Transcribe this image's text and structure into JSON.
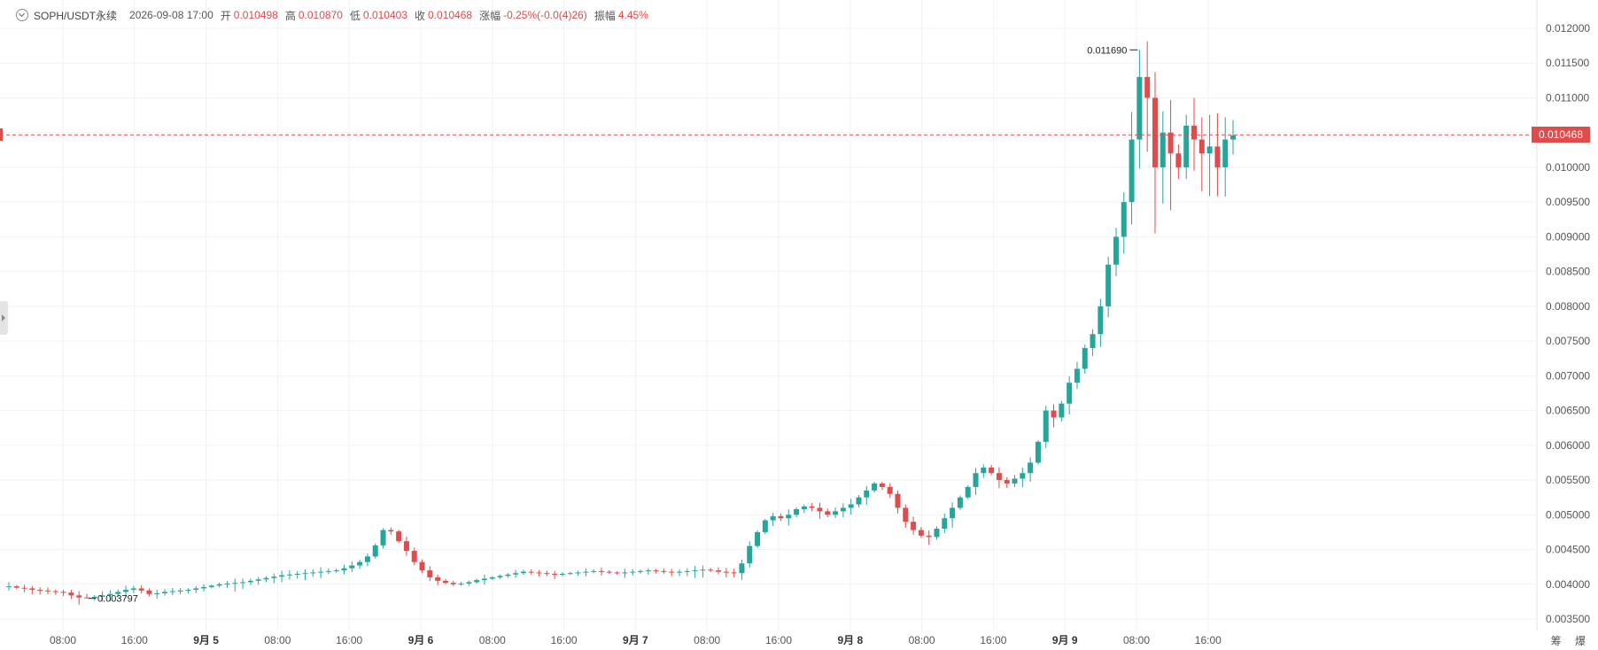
{
  "legend": {
    "symbol": "SOPH/USDT永续",
    "timestamp": "2026-09-08 17:00",
    "open_label": "开",
    "open": "0.010498",
    "high_label": "高",
    "high": "0.010870",
    "low_label": "低",
    "low": "0.010403",
    "close_label": "收",
    "close": "0.010468",
    "change_label": "涨幅",
    "change": "-0.25%(-0.0(4)26)",
    "amplitude_label": "振幅",
    "amplitude": "4.45%"
  },
  "current_price": "0.010468",
  "corner_label": "筹 爆",
  "colors": {
    "up": "#26a69a",
    "down": "#e04b4b",
    "price_line": "#e04b4b",
    "grid": "#f2f2f2",
    "axis_text": "#555555"
  },
  "chart_data": {
    "type": "candlestick",
    "interval": "1h",
    "ylim": [
      0.0034,
      0.0122
    ],
    "y_ticks": [
      "0.012000",
      "0.011500",
      "0.011000",
      "0.010500",
      "0.010000",
      "0.009500",
      "0.009000",
      "0.008500",
      "0.008000",
      "0.007500",
      "0.007000",
      "0.006500",
      "0.006000",
      "0.005500",
      "0.005000",
      "0.004500",
      "0.004000",
      "0.003500"
    ],
    "x_ticks": [
      {
        "label": "08:00",
        "h": 8
      },
      {
        "label": "16:00",
        "h": 16
      },
      {
        "label": "9月 5",
        "h": 24
      },
      {
        "label": "08:00",
        "h": 32
      },
      {
        "label": "16:00",
        "h": 40
      },
      {
        "label": "9月 6",
        "h": 48
      },
      {
        "label": "08:00",
        "h": 56
      },
      {
        "label": "16:00",
        "h": 64
      },
      {
        "label": "9月 7",
        "h": 72
      },
      {
        "label": "08:00",
        "h": 80
      },
      {
        "label": "16:00",
        "h": 88
      },
      {
        "label": "9月 8",
        "h": 96
      },
      {
        "label": "08:00",
        "h": 104
      },
      {
        "label": "16:00",
        "h": 112
      },
      {
        "label": "9月 9",
        "h": 120
      },
      {
        "label": "08:00",
        "h": 128
      },
      {
        "label": "16:00",
        "h": 136
      }
    ],
    "annotations": {
      "max": "0.011690",
      "min": "0.003797"
    },
    "closes": [
      0.00397,
      0.00395,
      0.00394,
      0.00392,
      0.00391,
      0.0039,
      0.00389,
      0.00388,
      0.00384,
      0.00381,
      0.0038,
      0.00382,
      0.00384,
      0.00386,
      0.00389,
      0.00392,
      0.00394,
      0.00391,
      0.00386,
      0.00387,
      0.00389,
      0.0039,
      0.00391,
      0.00392,
      0.00394,
      0.00396,
      0.00398,
      0.004,
      0.00401,
      0.00402,
      0.00403,
      0.00405,
      0.00407,
      0.00409,
      0.00411,
      0.00413,
      0.00414,
      0.00415,
      0.00416,
      0.00417,
      0.00418,
      0.00419,
      0.0042,
      0.00423,
      0.00427,
      0.00432,
      0.0044,
      0.00456,
      0.00478,
      0.00476,
      0.00462,
      0.00448,
      0.00432,
      0.0042,
      0.0041,
      0.00405,
      0.00402,
      0.004,
      0.00401,
      0.00403,
      0.00406,
      0.00408,
      0.0041,
      0.00412,
      0.00414,
      0.00416,
      0.00418,
      0.00417,
      0.00416,
      0.00415,
      0.00414,
      0.00415,
      0.00416,
      0.00417,
      0.00418,
      0.00419,
      0.00418,
      0.00417,
      0.00416,
      0.00417,
      0.00418,
      0.00419,
      0.0042,
      0.00419,
      0.00418,
      0.00417,
      0.00418,
      0.00419,
      0.0042,
      0.00421,
      0.0042,
      0.00418,
      0.00417,
      0.00416,
      0.0043,
      0.00455,
      0.00475,
      0.00492,
      0.00498,
      0.00495,
      0.005,
      0.00508,
      0.00512,
      0.0051,
      0.00505,
      0.005,
      0.00505,
      0.0051,
      0.00515,
      0.00525,
      0.00535,
      0.00545,
      0.0054,
      0.0053,
      0.0051,
      0.0049,
      0.00478,
      0.0047,
      0.00468,
      0.0048,
      0.00495,
      0.0051,
      0.00525,
      0.0054,
      0.0056,
      0.00568,
      0.0056,
      0.0055,
      0.00545,
      0.00552,
      0.0056,
      0.00575,
      0.00605,
      0.0065,
      0.0064,
      0.0066,
      0.0069,
      0.0071,
      0.0074,
      0.0076,
      0.008,
      0.0086,
      0.009,
      0.0095,
      0.0104,
      0.0113,
      0.011,
      0.01,
      0.0105,
      0.0102,
      0.01,
      0.0106,
      0.0104,
      0.0102,
      0.0103,
      0.01,
      0.0104,
      0.01046
    ]
  }
}
